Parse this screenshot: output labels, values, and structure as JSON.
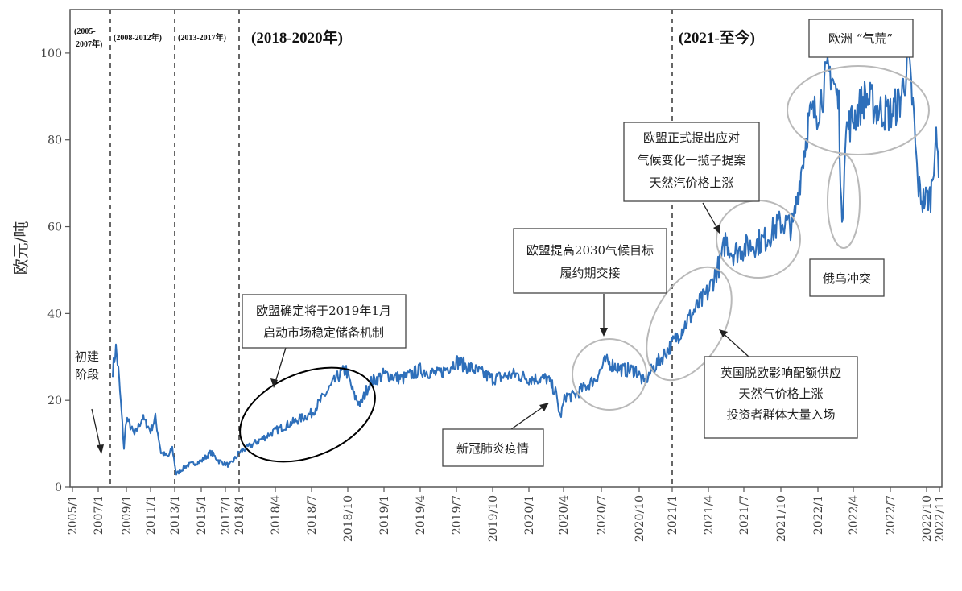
{
  "chart_data": {
    "type": "line",
    "ylabel": "欧元/吨",
    "ylim": [
      0,
      110
    ],
    "yticks": [
      0,
      20,
      40,
      60,
      80,
      100
    ],
    "line_color": "#2e6fba",
    "x_tick_labels": [
      "2005/1",
      "2007/1",
      "2009/1",
      "2011/1",
      "2013/1",
      "2015/1",
      "2017/1",
      "2018/1",
      "2018/4",
      "2018/7",
      "2018/10",
      "2019/1",
      "2019/4",
      "2019/7",
      "2019/10",
      "2020/1",
      "2020/4",
      "2020/7",
      "2020/10",
      "2021/1",
      "2021/4",
      "2021/7",
      "2021/10",
      "2022/1",
      "2022/4",
      "2022/7",
      "2022/10",
      "2022/11"
    ],
    "series": [
      {
        "values_at_ticks": [
          0,
          0,
          13,
          13,
          7,
          6,
          5,
          8,
          13,
          16,
          24,
          25,
          26,
          29,
          26,
          24,
          20,
          29,
          26,
          33,
          44,
          55,
          58,
          80,
          85,
          88,
          70,
          75
        ],
        "key_points": [
          {
            "x": "2008/5",
            "y": 32
          },
          {
            "x": "2008/10",
            "y": 24
          },
          {
            "x": "2013/3",
            "y": 3
          },
          {
            "x": "2018/10",
            "y": 28
          },
          {
            "x": "2020/4",
            "y": 16
          },
          {
            "x": "2022/2",
            "y": 97
          },
          {
            "x": "2022/3",
            "y": 58
          },
          {
            "x": "2022/8",
            "y": 98
          }
        ]
      }
    ],
    "phases": [
      "(2005-2007年)",
      "(2008-2012年)",
      "(2013-2017年)",
      "(2018-2020年)",
      "(2021-至今)"
    ],
    "annotations": {
      "initial": [
        "初建",
        "阶段"
      ],
      "msr": [
        "欧盟确定将于2019年1月",
        "启动市场稳定储备机制"
      ],
      "covid": [
        "新冠肺炎疫情"
      ],
      "target2030": [
        "欧盟提高2030气候目标",
        "履约期交接"
      ],
      "brexit": [
        "英国脱欧影响配额供应",
        "天然气价格上涨",
        "投资者群体大量入场"
      ],
      "fitfor55": [
        "欧盟正式提出应对",
        "气候变化一揽子提案",
        "天然汽价格上涨"
      ],
      "energy_crisis": [
        "欧洲 “气荒”"
      ],
      "ru_ua": [
        "俄乌冲突"
      ]
    }
  }
}
